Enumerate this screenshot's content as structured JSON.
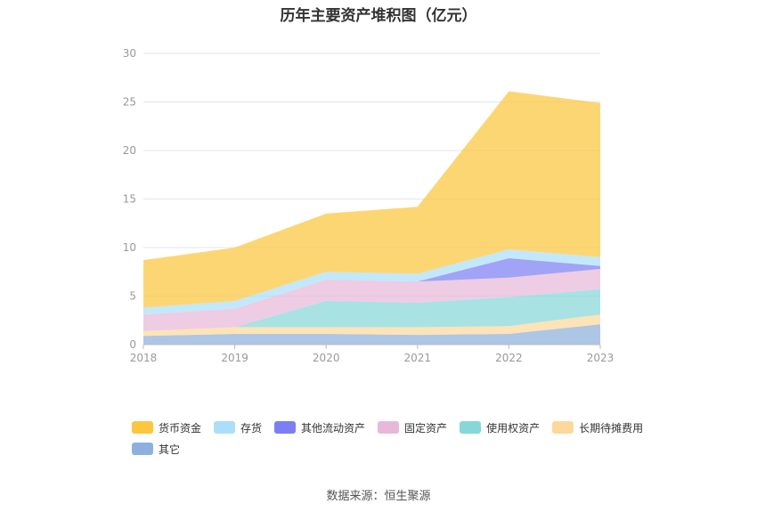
{
  "chart_data": {
    "type": "area",
    "stacked": true,
    "title": "历年主要资产堆积图（亿元）",
    "x": [
      "2018",
      "2019",
      "2020",
      "2021",
      "2022",
      "2023"
    ],
    "ylim": [
      0,
      30
    ],
    "yticks": [
      0,
      5,
      10,
      15,
      20,
      25,
      30
    ],
    "grid": true,
    "legend_position": "bottom",
    "series": [
      {
        "name": "其它",
        "color": "#8eb0dd",
        "values": [
          0.9,
          1.1,
          1.1,
          1.0,
          1.1,
          2.1
        ]
      },
      {
        "name": "长期待摊费用",
        "color": "#fdd89a",
        "values": [
          0.5,
          0.7,
          0.7,
          0.8,
          0.8,
          1.0
        ]
      },
      {
        "name": "使用权资产",
        "color": "#86d7d8",
        "values": [
          0.0,
          0.0,
          2.7,
          2.5,
          3.0,
          2.6
        ]
      },
      {
        "name": "固定资产",
        "color": "#e8b8da",
        "values": [
          1.7,
          1.9,
          2.2,
          2.2,
          2.0,
          2.1
        ]
      },
      {
        "name": "其他流动资产",
        "color": "#7b7ff3",
        "values": [
          0.0,
          0.0,
          0.0,
          0.0,
          2.0,
          0.3
        ]
      },
      {
        "name": "存货",
        "color": "#aadffb",
        "values": [
          0.7,
          0.8,
          0.8,
          0.8,
          0.9,
          0.9
        ]
      },
      {
        "name": "货币资金",
        "color": "#fcc63f",
        "values": [
          4.9,
          5.5,
          6.0,
          6.9,
          16.3,
          15.9
        ]
      }
    ],
    "legend_order": [
      "货币资金",
      "存货",
      "其他流动资产",
      "固定资产",
      "使用权资产",
      "长期待摊费用",
      "其它"
    ]
  },
  "source_text": "数据来源：恒生聚源"
}
